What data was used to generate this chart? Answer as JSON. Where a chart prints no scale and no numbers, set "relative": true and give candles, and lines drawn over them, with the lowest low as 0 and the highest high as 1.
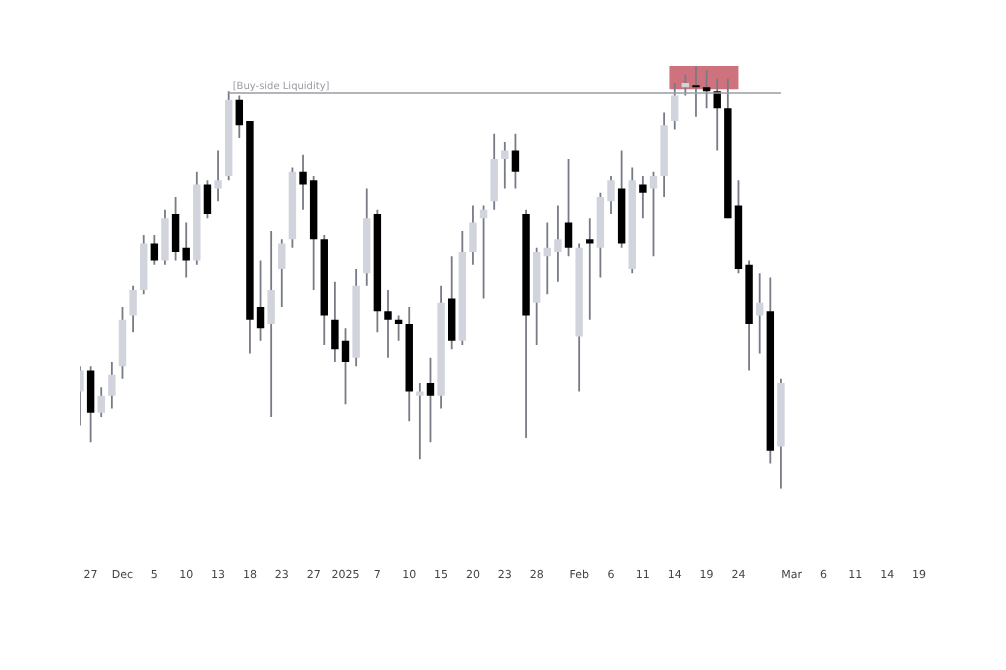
{
  "chart_data": {
    "type": "candlestick",
    "relative": true,
    "tick_labels": "x",
    "categories": [
      null,
      "27",
      null,
      null,
      "Dec",
      null,
      null,
      "5",
      null,
      null,
      "10",
      null,
      null,
      "13",
      null,
      null,
      "18",
      null,
      null,
      "23",
      null,
      null,
      "27",
      null,
      null,
      "2025",
      null,
      null,
      "7",
      null,
      null,
      "10",
      null,
      null,
      "15",
      null,
      null,
      "20",
      null,
      null,
      "23",
      null,
      null,
      "28",
      null,
      null,
      null,
      "Feb",
      null,
      null,
      "6",
      null,
      null,
      "11",
      null,
      null,
      "14",
      null,
      null,
      "19",
      null,
      null,
      "24",
      null,
      null,
      null,
      null,
      "Mar",
      null,
      null,
      "6",
      null,
      null,
      "11",
      null,
      null,
      "14",
      null,
      null,
      "19"
    ],
    "ohlc": [
      [
        0.23,
        0.29,
        0.15,
        0.28
      ],
      [
        0.28,
        0.29,
        0.11,
        0.18
      ],
      [
        0.18,
        0.24,
        0.17,
        0.22
      ],
      [
        0.22,
        0.3,
        0.19,
        0.27
      ],
      [
        0.29,
        0.43,
        0.26,
        0.4
      ],
      [
        0.41,
        0.48,
        0.37,
        0.47
      ],
      [
        0.47,
        0.6,
        0.46,
        0.58
      ],
      [
        0.58,
        0.6,
        0.53,
        0.54
      ],
      [
        0.54,
        0.66,
        0.53,
        0.64
      ],
      [
        0.65,
        0.69,
        0.54,
        0.56
      ],
      [
        0.57,
        0.63,
        0.5,
        0.54
      ],
      [
        0.54,
        0.75,
        0.53,
        0.72
      ],
      [
        0.72,
        0.73,
        0.64,
        0.65
      ],
      [
        0.71,
        0.8,
        0.68,
        0.73
      ],
      [
        0.74,
        0.94,
        0.73,
        0.92
      ],
      [
        0.92,
        0.93,
        0.83,
        0.86
      ],
      [
        0.87,
        0.87,
        0.32,
        0.4
      ],
      [
        0.43,
        0.54,
        0.35,
        0.38
      ],
      [
        0.39,
        0.61,
        0.17,
        0.47
      ],
      [
        0.52,
        0.59,
        0.43,
        0.58
      ],
      [
        0.59,
        0.76,
        0.57,
        0.75
      ],
      [
        0.75,
        0.79,
        0.66,
        0.72
      ],
      [
        0.73,
        0.74,
        0.47,
        0.59
      ],
      [
        0.59,
        0.6,
        0.34,
        0.41
      ],
      [
        0.4,
        0.49,
        0.3,
        0.33
      ],
      [
        0.35,
        0.38,
        0.2,
        0.3
      ],
      [
        0.31,
        0.52,
        0.29,
        0.48
      ],
      [
        0.51,
        0.71,
        0.48,
        0.64
      ],
      [
        0.65,
        0.66,
        0.37,
        0.42
      ],
      [
        0.42,
        0.47,
        0.31,
        0.4
      ],
      [
        0.4,
        0.41,
        0.35,
        0.39
      ],
      [
        0.39,
        0.43,
        0.16,
        0.23
      ],
      [
        0.22,
        0.25,
        0.07,
        0.23
      ],
      [
        0.25,
        0.31,
        0.11,
        0.22
      ],
      [
        0.22,
        0.48,
        0.19,
        0.44
      ],
      [
        0.45,
        0.55,
        0.33,
        0.35
      ],
      [
        0.35,
        0.61,
        0.34,
        0.56
      ],
      [
        0.56,
        0.67,
        0.53,
        0.63
      ],
      [
        0.64,
        0.67,
        0.45,
        0.66
      ],
      [
        0.68,
        0.84,
        0.66,
        0.78
      ],
      [
        0.78,
        0.82,
        0.71,
        0.8
      ],
      [
        0.8,
        0.84,
        0.71,
        0.75
      ],
      [
        0.65,
        0.66,
        0.12,
        0.41
      ],
      [
        0.44,
        0.57,
        0.34,
        0.56
      ],
      [
        0.55,
        0.63,
        0.46,
        0.57
      ],
      [
        0.56,
        0.67,
        0.49,
        0.59
      ],
      [
        0.63,
        0.78,
        0.55,
        0.57
      ],
      [
        0.36,
        0.58,
        0.23,
        0.57
      ],
      [
        0.59,
        0.64,
        0.4,
        0.58
      ],
      [
        0.57,
        0.7,
        0.5,
        0.69
      ],
      [
        0.68,
        0.74,
        0.65,
        0.73
      ],
      [
        0.71,
        0.8,
        0.57,
        0.58
      ],
      [
        0.52,
        0.76,
        0.51,
        0.73
      ],
      [
        0.72,
        0.74,
        0.64,
        0.7
      ],
      [
        0.71,
        0.75,
        0.55,
        0.74
      ],
      [
        0.74,
        0.89,
        0.69,
        0.86
      ],
      [
        0.87,
        0.96,
        0.85,
        0.93
      ],
      [
        0.95,
        0.98,
        0.93,
        0.96
      ],
      [
        0.95,
        1,
        0.88,
        0.95
      ],
      [
        0.95,
        0.99,
        0.9,
        0.94
      ],
      [
        0.94,
        0.97,
        0.8,
        0.9
      ],
      [
        0.9,
        0.97,
        0.64,
        0.64
      ],
      [
        0.67,
        0.73,
        0.51,
        0.52
      ],
      [
        0.53,
        0.54,
        0.28,
        0.39
      ],
      [
        0.41,
        0.51,
        0.32,
        0.44
      ],
      [
        0.42,
        0.5,
        0.06,
        0.09
      ],
      [
        0.1,
        0.26,
        0,
        0.25
      ],
      null,
      null,
      null,
      null,
      null,
      null,
      null,
      null,
      null,
      null,
      null,
      null,
      null
    ],
    "colors": [
      "#d1d4dc",
      "#000000",
      "#d1d4dc",
      "#d1d4dc",
      "#d1d4dc",
      "#d1d4dc",
      "#d1d4dc",
      "#000000",
      "#d1d4dc",
      "#000000",
      "#000000",
      "#d1d4dc",
      "#000000",
      "#d1d4dc",
      "#d1d4dc",
      "#000000",
      "#000000",
      "#000000",
      "#d1d4dc",
      "#d1d4dc",
      "#d1d4dc",
      "#000000",
      "#000000",
      "#000000",
      "#000000",
      "#000000",
      "#d1d4dc",
      "#d1d4dc",
      "#000000",
      "#000000",
      "#000000",
      "#000000",
      "#d1d4dc",
      "#000000",
      "#d1d4dc",
      "#000000",
      "#d1d4dc",
      "#d1d4dc",
      "#d1d4dc",
      "#d1d4dc",
      "#d1d4dc",
      "#000000",
      "#000000",
      "#d1d4dc",
      "#d1d4dc",
      "#d1d4dc",
      "#000000",
      "#d1d4dc",
      "#000000",
      "#d1d4dc",
      "#d1d4dc",
      "#000000",
      "#d1d4dc",
      "#000000",
      "#d1d4dc",
      "#d1d4dc",
      "#d1d4dc",
      "#d1d4dc",
      "#000000",
      "#000000",
      "#000000",
      "#000000",
      "#000000",
      "#000000",
      "#d1d4dc",
      "#000000",
      "#d1d4dc",
      null,
      null,
      null,
      null,
      null,
      null,
      null,
      null,
      null,
      null,
      null,
      null,
      null
    ],
    "ref_lines": [
      {
        "axis": "y",
        "value": 0.94,
        "label": "[Buy-side Liquidity]",
        "color": "#9a9ca3"
      }
    ],
    "bands": [
      {
        "axis": "y",
        "from": 0.945,
        "to": 1,
        "color": "#c65a66"
      }
    ]
  }
}
